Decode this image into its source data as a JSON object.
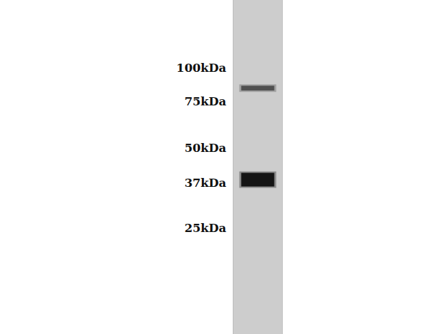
{
  "chart_data": {
    "type": "western_blot",
    "log": "y",
    "ylim": [
      10,
      180
    ],
    "yticks": [
      {
        "value": 100,
        "label": "100kDa"
      },
      {
        "value": 75,
        "label": "75kDa"
      },
      {
        "value": 50,
        "label": "50kDa"
      },
      {
        "value": 37,
        "label": "37kDa"
      },
      {
        "value": 25,
        "label": "25kDa"
      }
    ],
    "bands": [
      84,
      38
    ],
    "colors": [
      "#505050",
      "#151515"
    ],
    "grid": false
  }
}
